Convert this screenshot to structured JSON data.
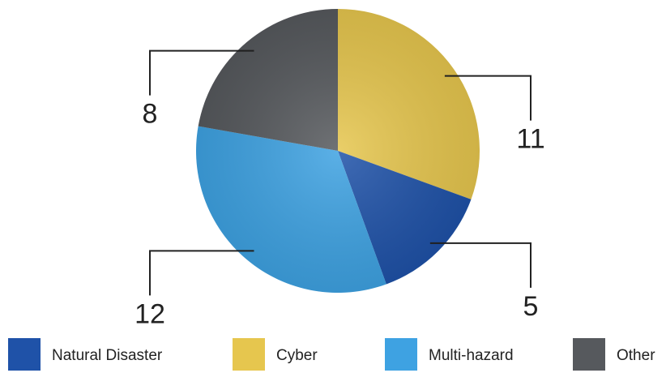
{
  "chart_data": {
    "type": "pie",
    "categories": [
      "Cyber",
      "Natural Disaster",
      "Multi-hazard",
      "Other"
    ],
    "values": [
      11,
      5,
      12,
      8
    ],
    "colors": [
      "#e6c64e",
      "#1f52a8",
      "#3ea2e2",
      "#56595d"
    ],
    "legend_order": [
      1,
      0,
      2,
      3
    ],
    "legend": "bottom"
  }
}
